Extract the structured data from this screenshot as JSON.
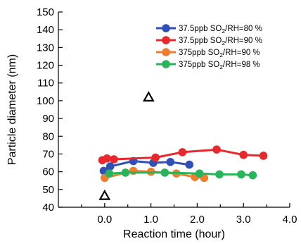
{
  "chart_data": {
    "type": "line",
    "xlabel": "Reaction time (hour)",
    "ylabel": "Particle diameter (nm)",
    "xlim": [
      -1.0,
      4.0
    ],
    "ylim": [
      40,
      150
    ],
    "x_ticks": [
      0.0,
      1.0,
      2.0,
      3.0,
      4.0
    ],
    "x_tick_labels": [
      "0.0",
      "1.0",
      "2.0",
      "3.0",
      "4.0"
    ],
    "y_ticks": [
      40,
      50,
      60,
      70,
      80,
      90,
      100,
      110,
      120,
      130,
      140,
      150
    ],
    "y_tick_labels": [
      "40",
      "50",
      "60",
      "70",
      "80",
      "90",
      "100",
      "110",
      "120",
      "130",
      "140",
      "150"
    ],
    "legend_position": "top-right",
    "series": [
      {
        "legend_prefix": "37.5ppb SO",
        "legend_sub": "2",
        "legend_suffix": "/RH=80 %",
        "color": "#3050b8",
        "x": [
          -0.02,
          0.12,
          0.62,
          1.05,
          1.42,
          1.83
        ],
        "y": [
          60.5,
          63.0,
          66.0,
          65.0,
          65.5,
          64.0
        ]
      },
      {
        "legend_prefix": "37.5ppb SO",
        "legend_sub": "2",
        "legend_suffix": "/RH=90 %",
        "color": "#e8282c",
        "x": [
          -0.05,
          0.05,
          0.2,
          1.1,
          1.68,
          2.42,
          3.0,
          3.43
        ],
        "y": [
          66.5,
          67.5,
          67.0,
          68.0,
          71.0,
          72.5,
          69.5,
          69.0
        ]
      },
      {
        "legend_prefix": "375ppb SO",
        "legend_sub": "2",
        "legend_suffix": "/RH=90 %",
        "color": "#ef7d2e",
        "x": [
          0.0,
          0.62,
          1.0,
          1.55,
          1.95,
          2.15
        ],
        "y": [
          56.5,
          60.5,
          60.0,
          59.0,
          57.0,
          56.5
        ]
      },
      {
        "legend_prefix": "375ppb SO",
        "legend_sub": "2",
        "legend_suffix": "/RH=98 %",
        "color": "#28b45a",
        "x": [
          0.1,
          0.45,
          1.3,
          2.05,
          2.48,
          2.95,
          3.2
        ],
        "y": [
          59.0,
          59.5,
          59.5,
          59.0,
          58.5,
          58.5,
          58.0
        ]
      }
    ],
    "annotations": [
      {
        "marker": "triangle-open",
        "x": 0.0,
        "y": 46.5,
        "color": "#000000"
      },
      {
        "marker": "triangle-open",
        "x": 0.95,
        "y": 102.0,
        "color": "#000000"
      }
    ]
  }
}
